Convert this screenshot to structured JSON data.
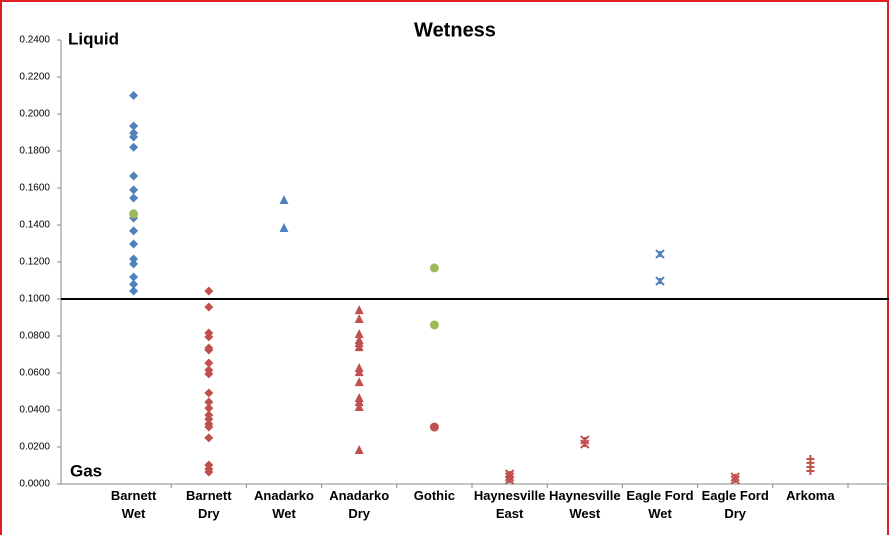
{
  "chart_data": {
    "type": "scatter",
    "title": "Wetness",
    "annotations": {
      "top": "Liquid",
      "bottom": "Gas"
    },
    "categories": [
      "Barnett\nWet",
      "Barnett\nDry",
      "Anadarko\nWet",
      "Anadarko\nDry",
      "Gothic",
      "Haynesville\nEast",
      "Haynesville\nWest",
      "Eagle Ford\nWet",
      "Eagle Ford\nDry",
      "Arkoma"
    ],
    "ylim": [
      0,
      0.24
    ],
    "yticks": [
      {
        "value": 0,
        "label": "0.0000"
      },
      {
        "value": 0.02,
        "label": "0.0200"
      },
      {
        "value": 0.04,
        "label": "0.0400"
      },
      {
        "value": 0.06,
        "label": "0.0600"
      },
      {
        "value": 0.08,
        "label": "0.0800"
      },
      {
        "value": 0.1,
        "label": "0.1000"
      },
      {
        "value": 0.12,
        "label": "0.1200"
      },
      {
        "value": 0.14,
        "label": "0.1400"
      },
      {
        "value": 0.16,
        "label": "0.1600"
      },
      {
        "value": 0.18,
        "label": "0.1800"
      },
      {
        "value": 0.2,
        "label": "0.2000"
      },
      {
        "value": 0.22,
        "label": "0.2200"
      },
      {
        "value": 0.24,
        "label": "0.2400"
      }
    ],
    "reference_line": 0.1,
    "series": [
      {
        "marker": "diamond",
        "color": "#4f81bd",
        "values": [
          [
            0.21,
            0.1935,
            0.1897,
            0.1876,
            0.182,
            0.1665,
            0.159,
            0.1546,
            0.1438,
            0.1368,
            0.1297,
            0.1216,
            0.119,
            0.1119,
            0.108,
            0.1043
          ],
          [],
          [],
          [],
          [],
          [],
          [],
          [],
          [],
          []
        ]
      },
      {
        "marker": "circle",
        "color": "#9bbb59",
        "values": [
          [
            0.146
          ],
          [],
          [],
          [],
          [
            0.1168,
            0.086
          ],
          [],
          [],
          [],
          [],
          []
        ]
      },
      {
        "marker": "triangle",
        "color": "#4f81bd",
        "values": [
          [],
          [],
          [
            0.1535,
            0.1384
          ],
          [],
          [],
          [],
          [],
          [],
          [],
          []
        ]
      },
      {
        "marker": "x",
        "color": "#4f81bd",
        "values": [
          [],
          [],
          [],
          [],
          [],
          [],
          [],
          [
            0.1243,
            0.1097
          ],
          [],
          []
        ]
      },
      {
        "marker": "diamond",
        "color": "#c0504d",
        "values": [
          [],
          [
            0.1043,
            0.0957,
            0.0816,
            0.0795,
            0.0735,
            0.0724,
            0.0654,
            0.0616,
            0.0595,
            0.0492,
            0.0443,
            0.041,
            0.0373,
            0.0351,
            0.0324,
            0.0308,
            0.0249,
            0.0103,
            0.0081,
            0.0065
          ],
          [],
          [],
          [],
          [],
          [],
          [],
          [],
          []
        ]
      },
      {
        "marker": "triangle",
        "color": "#c0504d",
        "values": [
          [],
          [],
          [],
          [
            0.094,
            0.0892,
            0.0811,
            0.0778,
            0.0762,
            0.074,
            0.0627,
            0.0605,
            0.0551,
            0.0465,
            0.0443,
            0.0416,
            0.0184
          ],
          [],
          [],
          [],
          [],
          [],
          []
        ]
      },
      {
        "marker": "circle",
        "color": "#c0504d",
        "values": [
          [],
          [],
          [],
          [],
          [
            0.0308
          ],
          [],
          [],
          [],
          [],
          []
        ]
      },
      {
        "marker": "x",
        "color": "#c0504d",
        "values": [
          [],
          [],
          [],
          [],
          [],
          [
            0.0054,
            0.0038,
            0.0022
          ],
          [
            0.0238,
            0.0216
          ],
          [],
          [
            0.0038,
            0.0022
          ],
          []
        ]
      },
      {
        "marker": "plus",
        "color": "#c0504d",
        "values": [
          [],
          [],
          [],
          [],
          [],
          [],
          [],
          [],
          [],
          [
            0.0135,
            0.0114,
            0.0092,
            0.007
          ]
        ]
      }
    ]
  }
}
